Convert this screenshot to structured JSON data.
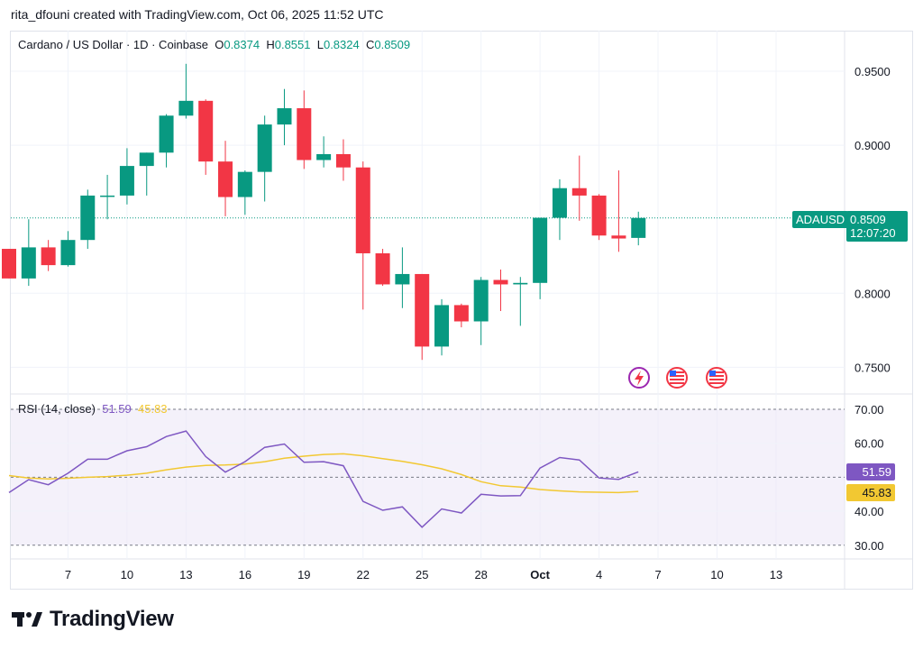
{
  "header": {
    "created_by": "rita_dfouni created with TradingView.com, Oct 06, 2025 11:52 UTC"
  },
  "legend": {
    "symbol": "Cardano / US Dollar · 1D · Coinbase",
    "o_label": "O",
    "o_value": "0.8374",
    "h_label": "H",
    "h_value": "0.8551",
    "l_label": "L",
    "l_value": "0.8324",
    "c_label": "C",
    "c_value": "0.8509"
  },
  "price_badge": {
    "ticker": "ADAUSD",
    "price": "0.8509",
    "countdown": "12:07:20"
  },
  "rsi_legend": {
    "label": "RSI (14, close)",
    "rsi_value": "51.59",
    "ma_value": "45.83"
  },
  "brand": {
    "name": "TradingView"
  },
  "colors": {
    "up": "#089981",
    "down": "#f23645",
    "rsi": "#7e57c2",
    "rsi_ma": "#f2c832",
    "band": "#ede7f6"
  },
  "icons": [
    "lightning-event-icon",
    "us-flag-icon",
    "us-flag-icon"
  ],
  "chart_data": [
    {
      "type": "candlestick",
      "title": "Cardano / US Dollar · 1D · Coinbase",
      "ylim": [
        0.73,
        0.965
      ],
      "yticks": [
        "0.9500",
        "0.9000",
        "0.8000",
        "0.7500"
      ],
      "xticks": [
        "7",
        "10",
        "13",
        "16",
        "19",
        "22",
        "25",
        "28",
        "Oct",
        "4",
        "7",
        "10",
        "13"
      ],
      "candles": [
        {
          "o": 0.83,
          "h": 0.83,
          "l": 0.81,
          "c": 0.81
        },
        {
          "o": 0.81,
          "h": 0.85,
          "l": 0.805,
          "c": 0.831
        },
        {
          "o": 0.831,
          "h": 0.836,
          "l": 0.815,
          "c": 0.819
        },
        {
          "o": 0.819,
          "h": 0.842,
          "l": 0.818,
          "c": 0.836
        },
        {
          "o": 0.836,
          "h": 0.87,
          "l": 0.83,
          "c": 0.866
        },
        {
          "o": 0.866,
          "h": 0.88,
          "l": 0.85,
          "c": 0.866
        },
        {
          "o": 0.866,
          "h": 0.898,
          "l": 0.86,
          "c": 0.886
        },
        {
          "o": 0.886,
          "h": 0.895,
          "l": 0.866,
          "c": 0.895
        },
        {
          "o": 0.895,
          "h": 0.921,
          "l": 0.885,
          "c": 0.92
        },
        {
          "o": 0.92,
          "h": 0.955,
          "l": 0.918,
          "c": 0.93
        },
        {
          "o": 0.93,
          "h": 0.931,
          "l": 0.88,
          "c": 0.889
        },
        {
          "o": 0.889,
          "h": 0.903,
          "l": 0.852,
          "c": 0.865
        },
        {
          "o": 0.865,
          "h": 0.883,
          "l": 0.853,
          "c": 0.882
        },
        {
          "o": 0.882,
          "h": 0.92,
          "l": 0.862,
          "c": 0.914
        },
        {
          "o": 0.914,
          "h": 0.938,
          "l": 0.9,
          "c": 0.925
        },
        {
          "o": 0.925,
          "h": 0.937,
          "l": 0.884,
          "c": 0.89
        },
        {
          "o": 0.89,
          "h": 0.906,
          "l": 0.885,
          "c": 0.894
        },
        {
          "o": 0.894,
          "h": 0.904,
          "l": 0.876,
          "c": 0.885
        },
        {
          "o": 0.885,
          "h": 0.889,
          "l": 0.789,
          "c": 0.827
        },
        {
          "o": 0.827,
          "h": 0.83,
          "l": 0.805,
          "c": 0.806
        },
        {
          "o": 0.806,
          "h": 0.831,
          "l": 0.79,
          "c": 0.813
        },
        {
          "o": 0.813,
          "h": 0.813,
          "l": 0.755,
          "c": 0.764
        },
        {
          "o": 0.764,
          "h": 0.796,
          "l": 0.758,
          "c": 0.792
        },
        {
          "o": 0.792,
          "h": 0.793,
          "l": 0.777,
          "c": 0.781
        },
        {
          "o": 0.781,
          "h": 0.811,
          "l": 0.765,
          "c": 0.809
        },
        {
          "o": 0.809,
          "h": 0.816,
          "l": 0.788,
          "c": 0.806
        },
        {
          "o": 0.806,
          "h": 0.811,
          "l": 0.778,
          "c": 0.807
        },
        {
          "o": 0.807,
          "h": 0.851,
          "l": 0.796,
          "c": 0.851
        },
        {
          "o": 0.851,
          "h": 0.877,
          "l": 0.836,
          "c": 0.871
        },
        {
          "o": 0.871,
          "h": 0.893,
          "l": 0.849,
          "c": 0.866
        },
        {
          "o": 0.866,
          "h": 0.867,
          "l": 0.836,
          "c": 0.839
        },
        {
          "o": 0.839,
          "h": 0.883,
          "l": 0.828,
          "c": 0.837
        },
        {
          "o": 0.8374,
          "h": 0.8551,
          "l": 0.8324,
          "c": 0.8509
        }
      ]
    },
    {
      "type": "line",
      "title": "RSI (14, close)",
      "ylim": [
        28,
        72
      ],
      "yticks": [
        "70.00",
        "60.00",
        "40.00",
        "30.00"
      ],
      "bands": [
        30,
        50,
        70
      ],
      "series": [
        {
          "name": "RSI",
          "values": [
            45.5,
            49.3,
            47.8,
            51.2,
            55.3,
            55.3,
            57.8,
            59.0,
            62.0,
            63.6,
            56.1,
            51.5,
            54.6,
            58.8,
            59.8,
            54.4,
            54.6,
            53.4,
            42.9,
            40.3,
            41.3,
            35.3,
            40.7,
            39.5,
            45.0,
            44.5,
            44.6,
            52.7,
            55.8,
            55.1,
            49.8,
            49.4,
            51.59
          ]
        },
        {
          "name": "RSI-based MA",
          "values": [
            50.5,
            49.8,
            49.5,
            49.7,
            50.0,
            50.2,
            50.6,
            51.2,
            52.2,
            53.0,
            53.5,
            53.6,
            53.9,
            54.6,
            55.6,
            56.2,
            56.7,
            56.9,
            56.3,
            55.5,
            54.7,
            53.7,
            52.5,
            50.8,
            48.7,
            47.5,
            47.1,
            46.4,
            46.0,
            45.7,
            45.6,
            45.5,
            45.83
          ]
        }
      ]
    }
  ]
}
